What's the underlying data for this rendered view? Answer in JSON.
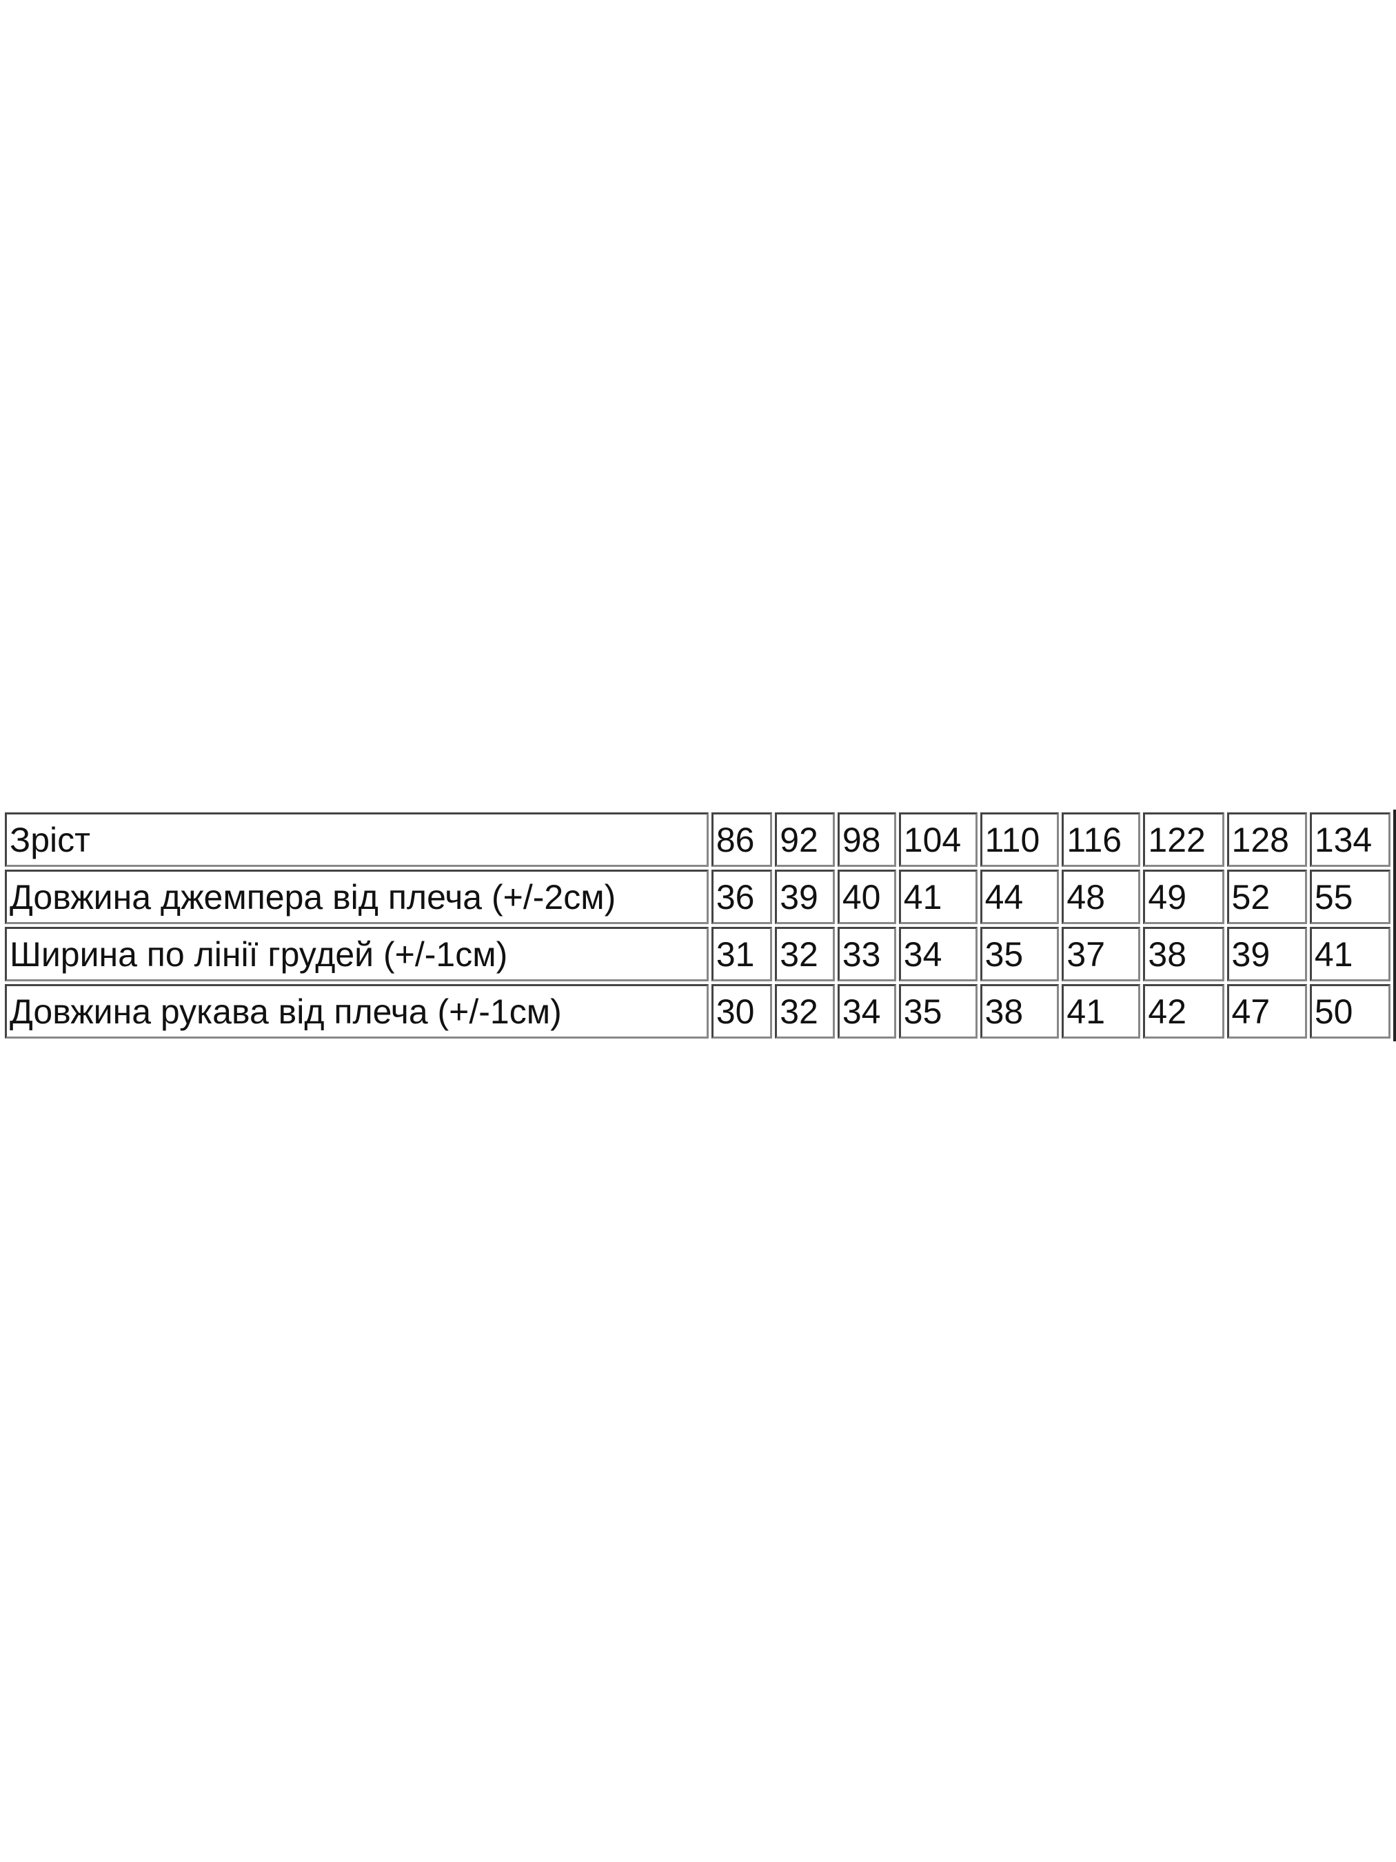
{
  "size_table": {
    "rows": [
      {
        "label": "Зріст",
        "values": [
          "86",
          "92",
          "98",
          "104",
          "110",
          "116",
          "122",
          "128",
          "134"
        ]
      },
      {
        "label": "Довжина джемпера від плеча (+/-2см)",
        "values": [
          "36",
          "39",
          "40",
          "41",
          "44",
          "48",
          "49",
          "52",
          "55"
        ]
      },
      {
        "label": "Ширина по лінії грудей (+/-1см)",
        "values": [
          "31",
          "32",
          "33",
          "34",
          "35",
          "37",
          "38",
          "39",
          "41"
        ]
      },
      {
        "label": "Довжина рукава від плеча (+/-1см)",
        "values": [
          "30",
          "32",
          "34",
          "35",
          "38",
          "41",
          "42",
          "47",
          "50"
        ]
      }
    ]
  }
}
